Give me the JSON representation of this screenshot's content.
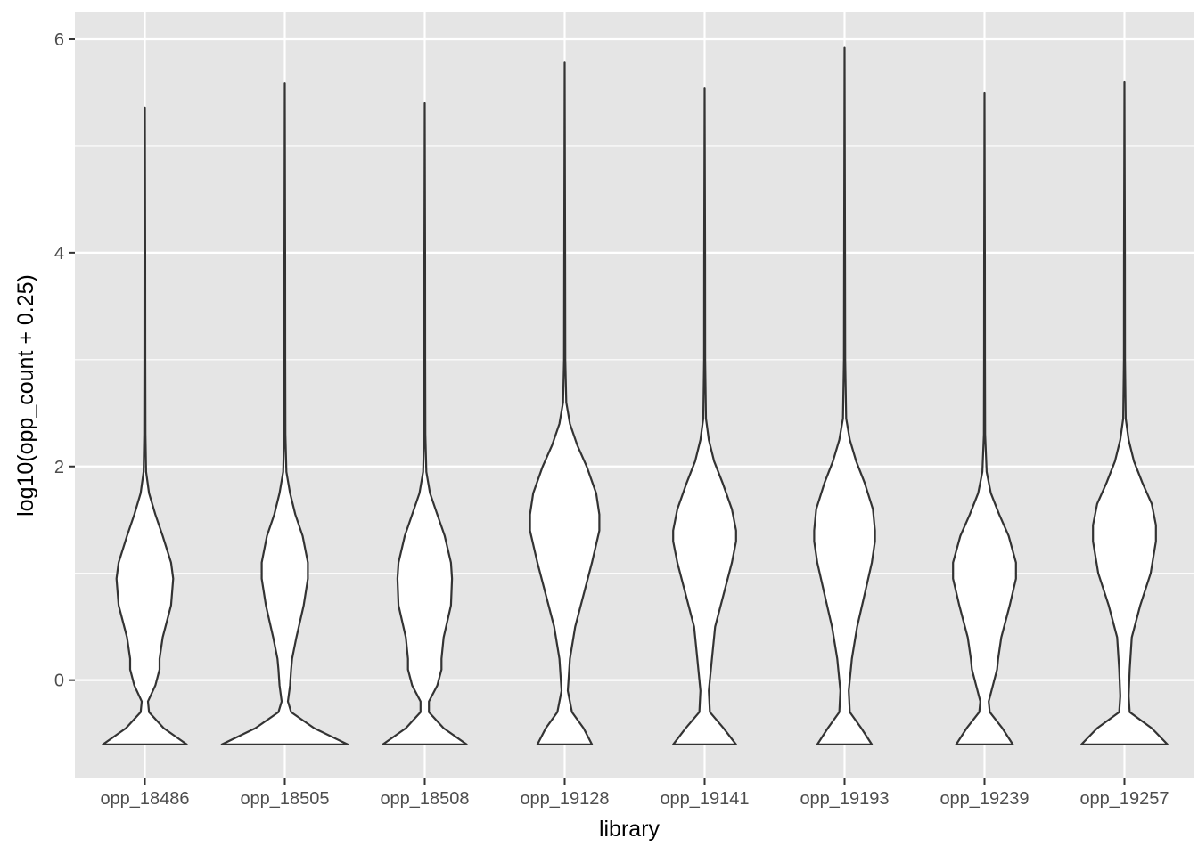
{
  "chart_data": {
    "type": "violin",
    "xlabel": "library",
    "ylabel": "log10(opp_count + 0.25)",
    "ylim": [
      -0.92,
      6.25
    ],
    "y_ticks": [
      0,
      2,
      4,
      6
    ],
    "y_tick_labels": [
      "0",
      "2",
      "4",
      "6"
    ],
    "grid": true,
    "colors": {
      "panel_background": "#e5e5e5",
      "grid": "#ffffff",
      "violin_fill": "#ffffff",
      "violin_outline": "#333333",
      "tick_text": "#4d4d4d"
    },
    "categories": [
      "opp_18486",
      "opp_18505",
      "opp_18508",
      "opp_19128",
      "opp_19141",
      "opp_19193",
      "opp_19239",
      "opp_19257"
    ],
    "violins": [
      {
        "name": "opp_18486",
        "max": 5.36,
        "profile": [
          [
            -0.602,
            0.4
          ],
          [
            -0.45,
            0.18
          ],
          [
            -0.3,
            0.04
          ],
          [
            -0.2,
            0.03
          ],
          [
            -0.05,
            0.1
          ],
          [
            0.1,
            0.14
          ],
          [
            0.2,
            0.14
          ],
          [
            0.4,
            0.17
          ],
          [
            0.7,
            0.25
          ],
          [
            0.95,
            0.27
          ],
          [
            1.1,
            0.25
          ],
          [
            1.35,
            0.17
          ],
          [
            1.55,
            0.1
          ],
          [
            1.75,
            0.04
          ],
          [
            1.95,
            0.012
          ],
          [
            2.3,
            0.006
          ],
          [
            3.0,
            0.004
          ],
          [
            4.0,
            0.003
          ],
          [
            5.36,
            0.0
          ]
        ]
      },
      {
        "name": "opp_18505",
        "max": 5.59,
        "profile": [
          [
            -0.602,
            0.6
          ],
          [
            -0.45,
            0.28
          ],
          [
            -0.3,
            0.06
          ],
          [
            -0.2,
            0.03
          ],
          [
            -0.05,
            0.05
          ],
          [
            0.1,
            0.06
          ],
          [
            0.2,
            0.07
          ],
          [
            0.4,
            0.11
          ],
          [
            0.7,
            0.18
          ],
          [
            0.95,
            0.22
          ],
          [
            1.1,
            0.22
          ],
          [
            1.35,
            0.17
          ],
          [
            1.55,
            0.1
          ],
          [
            1.75,
            0.05
          ],
          [
            1.95,
            0.015
          ],
          [
            2.3,
            0.006
          ],
          [
            3.0,
            0.004
          ],
          [
            4.0,
            0.003
          ],
          [
            5.59,
            0.0
          ]
        ]
      },
      {
        "name": "opp_18508",
        "max": 5.4,
        "profile": [
          [
            -0.602,
            0.4
          ],
          [
            -0.45,
            0.18
          ],
          [
            -0.3,
            0.04
          ],
          [
            -0.2,
            0.04
          ],
          [
            -0.05,
            0.12
          ],
          [
            0.1,
            0.16
          ],
          [
            0.2,
            0.16
          ],
          [
            0.4,
            0.18
          ],
          [
            0.7,
            0.25
          ],
          [
            0.95,
            0.26
          ],
          [
            1.1,
            0.25
          ],
          [
            1.35,
            0.19
          ],
          [
            1.55,
            0.12
          ],
          [
            1.75,
            0.05
          ],
          [
            1.95,
            0.015
          ],
          [
            2.3,
            0.006
          ],
          [
            3.0,
            0.004
          ],
          [
            4.0,
            0.003
          ],
          [
            5.4,
            0.0
          ]
        ]
      },
      {
        "name": "opp_19128",
        "max": 5.78,
        "profile": [
          [
            -0.602,
            0.26
          ],
          [
            -0.45,
            0.18
          ],
          [
            -0.3,
            0.07
          ],
          [
            -0.1,
            0.03
          ],
          [
            0.2,
            0.05
          ],
          [
            0.5,
            0.1
          ],
          [
            0.8,
            0.18
          ],
          [
            1.1,
            0.26
          ],
          [
            1.4,
            0.33
          ],
          [
            1.55,
            0.33
          ],
          [
            1.75,
            0.3
          ],
          [
            2.0,
            0.21
          ],
          [
            2.2,
            0.12
          ],
          [
            2.4,
            0.05
          ],
          [
            2.6,
            0.015
          ],
          [
            3.0,
            0.006
          ],
          [
            4.0,
            0.004
          ],
          [
            5.78,
            0.0
          ]
        ]
      },
      {
        "name": "opp_19141",
        "max": 5.54,
        "profile": [
          [
            -0.602,
            0.3
          ],
          [
            -0.45,
            0.18
          ],
          [
            -0.3,
            0.05
          ],
          [
            -0.1,
            0.04
          ],
          [
            0.2,
            0.07
          ],
          [
            0.5,
            0.1
          ],
          [
            0.8,
            0.18
          ],
          [
            1.1,
            0.26
          ],
          [
            1.3,
            0.3
          ],
          [
            1.4,
            0.3
          ],
          [
            1.6,
            0.26
          ],
          [
            1.85,
            0.17
          ],
          [
            2.05,
            0.09
          ],
          [
            2.25,
            0.04
          ],
          [
            2.45,
            0.013
          ],
          [
            3.0,
            0.005
          ],
          [
            4.0,
            0.004
          ],
          [
            5.54,
            0.0
          ]
        ]
      },
      {
        "name": "opp_19193",
        "max": 5.92,
        "profile": [
          [
            -0.602,
            0.26
          ],
          [
            -0.45,
            0.16
          ],
          [
            -0.3,
            0.05
          ],
          [
            -0.1,
            0.04
          ],
          [
            0.2,
            0.07
          ],
          [
            0.5,
            0.12
          ],
          [
            0.8,
            0.19
          ],
          [
            1.1,
            0.26
          ],
          [
            1.3,
            0.29
          ],
          [
            1.4,
            0.29
          ],
          [
            1.6,
            0.27
          ],
          [
            1.85,
            0.19
          ],
          [
            2.05,
            0.11
          ],
          [
            2.25,
            0.05
          ],
          [
            2.45,
            0.015
          ],
          [
            3.0,
            0.006
          ],
          [
            4.0,
            0.004
          ],
          [
            5.92,
            0.0
          ]
        ]
      },
      {
        "name": "opp_19239",
        "max": 5.5,
        "profile": [
          [
            -0.602,
            0.27
          ],
          [
            -0.45,
            0.17
          ],
          [
            -0.3,
            0.05
          ],
          [
            -0.2,
            0.04
          ],
          [
            -0.05,
            0.08
          ],
          [
            0.1,
            0.12
          ],
          [
            0.2,
            0.13
          ],
          [
            0.4,
            0.16
          ],
          [
            0.7,
            0.24
          ],
          [
            0.95,
            0.3
          ],
          [
            1.1,
            0.3
          ],
          [
            1.35,
            0.23
          ],
          [
            1.55,
            0.14
          ],
          [
            1.75,
            0.06
          ],
          [
            1.95,
            0.02
          ],
          [
            2.3,
            0.006
          ],
          [
            3.0,
            0.004
          ],
          [
            4.0,
            0.003
          ],
          [
            5.5,
            0.0
          ]
        ]
      },
      {
        "name": "opp_19257",
        "max": 5.6,
        "profile": [
          [
            -0.602,
            0.41
          ],
          [
            -0.45,
            0.26
          ],
          [
            -0.3,
            0.05
          ],
          [
            -0.15,
            0.04
          ],
          [
            0.1,
            0.05
          ],
          [
            0.4,
            0.07
          ],
          [
            0.7,
            0.15
          ],
          [
            1.0,
            0.25
          ],
          [
            1.3,
            0.3
          ],
          [
            1.45,
            0.3
          ],
          [
            1.65,
            0.26
          ],
          [
            1.85,
            0.17
          ],
          [
            2.05,
            0.09
          ],
          [
            2.25,
            0.04
          ],
          [
            2.45,
            0.012
          ],
          [
            3.0,
            0.005
          ],
          [
            4.0,
            0.004
          ],
          [
            5.6,
            0.0
          ]
        ]
      }
    ]
  }
}
